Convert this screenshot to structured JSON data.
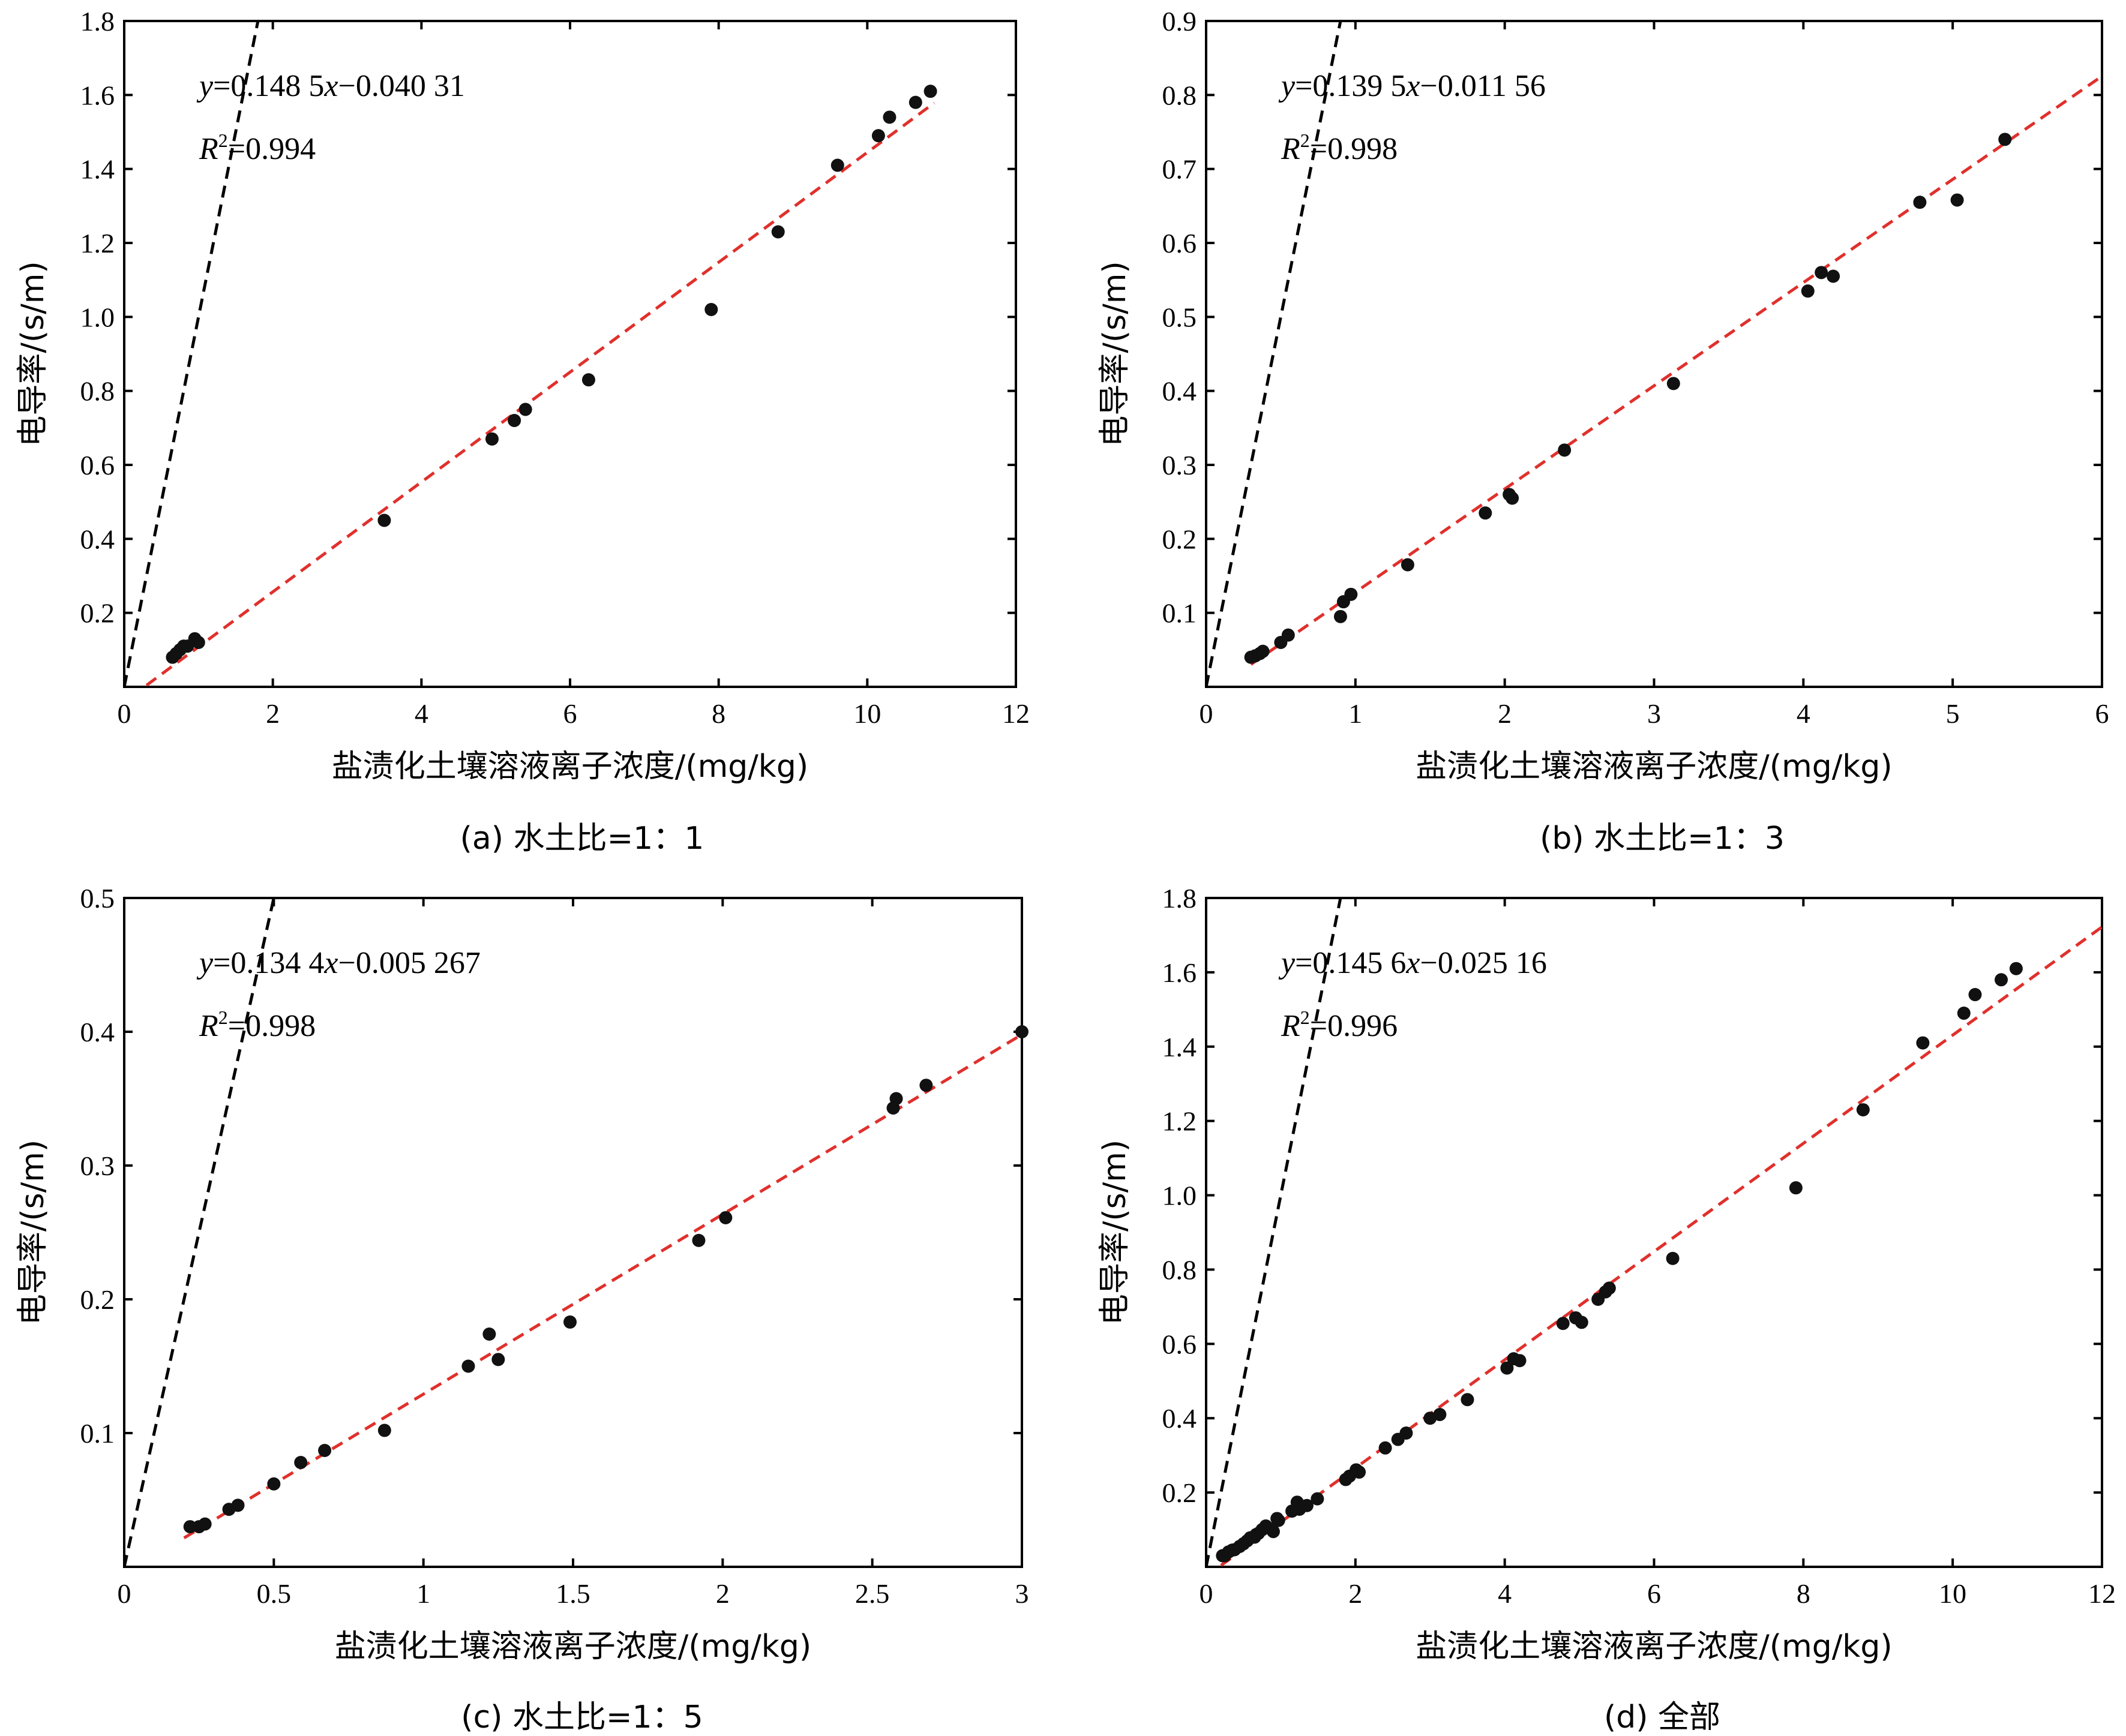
{
  "chart_data": [
    {
      "type": "scatter",
      "caption": "(a) 水土比=1：1",
      "xlabel": "盐渍化土壤溶液离子浓度/(mg/kg)",
      "ylabel": "电导率/(s/m)",
      "xlim": [
        0,
        12
      ],
      "ylim": [
        0,
        1.8
      ],
      "xticks": [
        "0",
        "2",
        "4",
        "6",
        "8",
        "10",
        "12"
      ],
      "yticks": [
        "0.2",
        "0.4",
        "0.6",
        "0.8",
        "1.0",
        "1.2",
        "1.4",
        "1.6",
        "1.8"
      ],
      "equation": {
        "y": "y",
        "eq": "=0.148 5",
        "x": "x",
        "rest": "−0.040 31"
      },
      "r2": {
        "r": "R",
        "sup": "2",
        "val": "=0.994"
      },
      "fit": {
        "slope": 0.1485,
        "intercept": -0.04031,
        "x_range": [
          0.3,
          10.9
        ]
      },
      "reference_line": "y=x",
      "points": [
        [
          0.65,
          0.08
        ],
        [
          0.7,
          0.09
        ],
        [
          0.75,
          0.1
        ],
        [
          0.8,
          0.11
        ],
        [
          0.85,
          0.11
        ],
        [
          0.95,
          0.13
        ],
        [
          1.0,
          0.12
        ],
        [
          3.5,
          0.45
        ],
        [
          4.95,
          0.67
        ],
        [
          5.25,
          0.72
        ],
        [
          5.4,
          0.75
        ],
        [
          6.25,
          0.83
        ],
        [
          7.9,
          1.02
        ],
        [
          8.8,
          1.23
        ],
        [
          9.6,
          1.41
        ],
        [
          10.15,
          1.49
        ],
        [
          10.3,
          1.54
        ],
        [
          10.65,
          1.58
        ],
        [
          10.85,
          1.61
        ]
      ]
    },
    {
      "type": "scatter",
      "caption": "(b) 水土比=1：3",
      "xlabel": "盐渍化土壤溶液离子浓度/(mg/kg)",
      "ylabel": "电导率/(s/m)",
      "xlim": [
        0,
        6
      ],
      "ylim": [
        0,
        0.9
      ],
      "xticks": [
        "0",
        "1",
        "2",
        "3",
        "4",
        "5",
        "6"
      ],
      "yticks": [
        "0.1",
        "0.2",
        "0.3",
        "0.4",
        "0.5",
        "0.6",
        "0.7",
        "0.8",
        "0.9"
      ],
      "equation": {
        "y": "y",
        "eq": "=0.139 5",
        "x": "x",
        "rest": "−0.011 56"
      },
      "r2": {
        "r": "R",
        "sup": "2",
        "val": "=0.998"
      },
      "fit": {
        "slope": 0.1395,
        "intercept": -0.01156,
        "x_range": [
          0.3,
          6.0
        ]
      },
      "reference_line": "y=x",
      "points": [
        [
          0.3,
          0.04
        ],
        [
          0.33,
          0.042
        ],
        [
          0.36,
          0.045
        ],
        [
          0.38,
          0.048
        ],
        [
          0.5,
          0.06
        ],
        [
          0.55,
          0.07
        ],
        [
          0.9,
          0.095
        ],
        [
          0.92,
          0.115
        ],
        [
          0.97,
          0.125
        ],
        [
          1.35,
          0.165
        ],
        [
          1.87,
          0.235
        ],
        [
          2.03,
          0.26
        ],
        [
          2.05,
          0.255
        ],
        [
          2.4,
          0.32
        ],
        [
          3.13,
          0.41
        ],
        [
          4.03,
          0.535
        ],
        [
          4.12,
          0.56
        ],
        [
          4.2,
          0.555
        ],
        [
          4.78,
          0.655
        ],
        [
          5.03,
          0.658
        ],
        [
          5.35,
          0.74
        ]
      ]
    },
    {
      "type": "scatter",
      "caption": "(c) 水土比=1：5",
      "xlabel": "盐渍化土壤溶液离子浓度/(mg/kg)",
      "ylabel": "电导率/(s/m)",
      "xlim": [
        0,
        3
      ],
      "ylim": [
        0,
        0.5
      ],
      "xticks": [
        "0",
        "0.5",
        "1",
        "1.5",
        "2",
        "2.5",
        "3"
      ],
      "yticks": [
        "0.1",
        "0.2",
        "0.3",
        "0.4",
        "0.5"
      ],
      "equation": {
        "y": "y",
        "eq": "=0.134 4",
        "x": "x",
        "rest": "−0.005 267"
      },
      "r2": {
        "r": "R",
        "sup": "2",
        "val": "=0.998"
      },
      "fit": {
        "slope": 0.1344,
        "intercept": -0.005267,
        "x_range": [
          0.2,
          3.0
        ]
      },
      "reference_line": "y=x",
      "points": [
        [
          0.22,
          0.03
        ],
        [
          0.25,
          0.03
        ],
        [
          0.27,
          0.032
        ],
        [
          0.35,
          0.043
        ],
        [
          0.38,
          0.046
        ],
        [
          0.5,
          0.062
        ],
        [
          0.59,
          0.078
        ],
        [
          0.67,
          0.087
        ],
        [
          0.87,
          0.102
        ],
        [
          1.15,
          0.15
        ],
        [
          1.22,
          0.174
        ],
        [
          1.25,
          0.155
        ],
        [
          1.49,
          0.183
        ],
        [
          1.92,
          0.244
        ],
        [
          2.01,
          0.261
        ],
        [
          2.57,
          0.343
        ],
        [
          2.58,
          0.35
        ],
        [
          2.68,
          0.36
        ],
        [
          3.0,
          0.4
        ]
      ]
    },
    {
      "type": "scatter",
      "caption": "(d) 全部",
      "xlabel": "盐渍化土壤溶液离子浓度/(mg/kg)",
      "ylabel": "电导率/(s/m)",
      "xlim": [
        0,
        12
      ],
      "ylim": [
        0,
        1.8
      ],
      "xticks": [
        "0",
        "2",
        "4",
        "6",
        "8",
        "10",
        "12"
      ],
      "yticks": [
        "0.2",
        "0.4",
        "0.6",
        "0.8",
        "1.0",
        "1.2",
        "1.4",
        "1.6",
        "1.8"
      ],
      "equation": {
        "y": "y",
        "eq": "=0.145 6",
        "x": "x",
        "rest": "−0.025 16"
      },
      "r2": {
        "r": "R",
        "sup": "2",
        "val": "=0.996"
      },
      "fit": {
        "slope": 0.1456,
        "intercept": -0.02516,
        "x_range": [
          0.2,
          12.0
        ]
      },
      "reference_line": "y=x",
      "points": [
        [
          0.22,
          0.03
        ],
        [
          0.25,
          0.03
        ],
        [
          0.3,
          0.04
        ],
        [
          0.35,
          0.045
        ],
        [
          0.38,
          0.046
        ],
        [
          0.45,
          0.055
        ],
        [
          0.5,
          0.062
        ],
        [
          0.55,
          0.07
        ],
        [
          0.59,
          0.078
        ],
        [
          0.65,
          0.08
        ],
        [
          0.67,
          0.087
        ],
        [
          0.7,
          0.09
        ],
        [
          0.75,
          0.1
        ],
        [
          0.8,
          0.11
        ],
        [
          0.87,
          0.102
        ],
        [
          0.9,
          0.095
        ],
        [
          0.95,
          0.13
        ],
        [
          0.97,
          0.125
        ],
        [
          1.15,
          0.15
        ],
        [
          1.22,
          0.174
        ],
        [
          1.25,
          0.155
        ],
        [
          1.35,
          0.165
        ],
        [
          1.49,
          0.183
        ],
        [
          1.87,
          0.235
        ],
        [
          1.92,
          0.244
        ],
        [
          2.01,
          0.261
        ],
        [
          2.05,
          0.255
        ],
        [
          2.4,
          0.32
        ],
        [
          2.57,
          0.343
        ],
        [
          2.68,
          0.36
        ],
        [
          3.0,
          0.4
        ],
        [
          3.13,
          0.41
        ],
        [
          3.5,
          0.45
        ],
        [
          4.03,
          0.535
        ],
        [
          4.12,
          0.56
        ],
        [
          4.2,
          0.555
        ],
        [
          4.78,
          0.655
        ],
        [
          4.95,
          0.67
        ],
        [
          5.03,
          0.658
        ],
        [
          5.25,
          0.72
        ],
        [
          5.35,
          0.74
        ],
        [
          5.4,
          0.75
        ],
        [
          6.25,
          0.83
        ],
        [
          7.9,
          1.02
        ],
        [
          8.8,
          1.23
        ],
        [
          9.6,
          1.41
        ],
        [
          10.15,
          1.49
        ],
        [
          10.3,
          1.54
        ],
        [
          10.65,
          1.58
        ],
        [
          10.85,
          1.61
        ]
      ]
    }
  ]
}
